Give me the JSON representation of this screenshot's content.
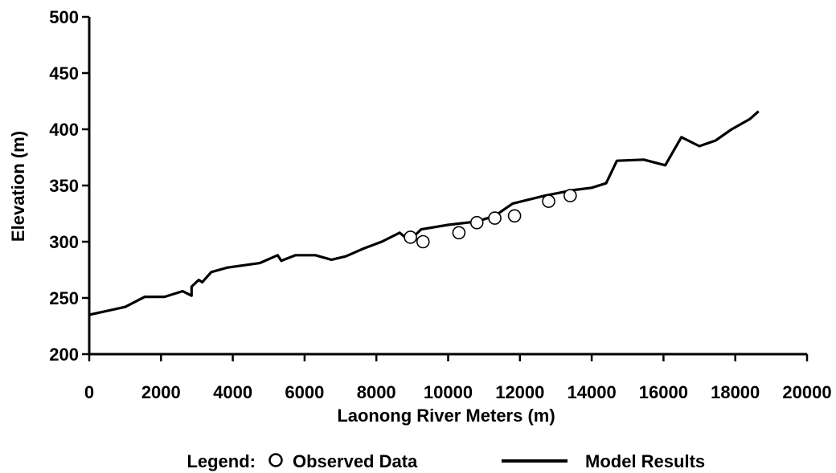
{
  "chart_data": {
    "type": "line",
    "title": "",
    "xlabel": "Laonong River Meters (m)",
    "ylabel": "Elevation (m)",
    "xlim": [
      0,
      20000
    ],
    "ylim": [
      200,
      500
    ],
    "xticks": [
      0,
      2000,
      4000,
      6000,
      8000,
      10000,
      12000,
      14000,
      16000,
      18000,
      20000
    ],
    "yticks": [
      200,
      250,
      300,
      350,
      400,
      450,
      500
    ],
    "grid": false,
    "legend": {
      "prefix": "Legend:",
      "placement": "bottom",
      "entries": [
        {
          "label": "Observed Data",
          "marker": "open-circle"
        },
        {
          "label": "Model Results",
          "marker": "line"
        }
      ]
    },
    "series": [
      {
        "name": "Model Results",
        "type": "line",
        "color": "#000000",
        "points": [
          [
            0,
            235
          ],
          [
            1000,
            242
          ],
          [
            1550,
            251
          ],
          [
            2100,
            251
          ],
          [
            2600,
            256
          ],
          [
            2850,
            252
          ],
          [
            2850,
            260
          ],
          [
            3050,
            266
          ],
          [
            3150,
            264
          ],
          [
            3400,
            273
          ],
          [
            3850,
            277
          ],
          [
            4750,
            281
          ],
          [
            5250,
            288
          ],
          [
            5350,
            283
          ],
          [
            5750,
            288
          ],
          [
            6300,
            288
          ],
          [
            6750,
            284
          ],
          [
            7150,
            287
          ],
          [
            7650,
            294
          ],
          [
            8150,
            300
          ],
          [
            8650,
            308
          ],
          [
            8800,
            304
          ],
          [
            9050,
            305
          ],
          [
            9250,
            311
          ],
          [
            10000,
            315
          ],
          [
            10800,
            318
          ],
          [
            11300,
            323
          ],
          [
            11800,
            334
          ],
          [
            12700,
            341
          ],
          [
            13500,
            346
          ],
          [
            14000,
            348
          ],
          [
            14400,
            352
          ],
          [
            14700,
            372
          ],
          [
            15450,
            373
          ],
          [
            16050,
            368
          ],
          [
            16500,
            393
          ],
          [
            17000,
            385
          ],
          [
            17450,
            390
          ],
          [
            17900,
            400
          ],
          [
            18400,
            409
          ],
          [
            18650,
            416
          ]
        ]
      },
      {
        "name": "Observed Data",
        "type": "scatter",
        "marker": "open-circle",
        "points": [
          [
            8950,
            304
          ],
          [
            9300,
            300
          ],
          [
            10300,
            308
          ],
          [
            10800,
            317
          ],
          [
            11300,
            321
          ],
          [
            11850,
            323
          ],
          [
            12800,
            336
          ],
          [
            13400,
            341
          ]
        ]
      }
    ]
  }
}
